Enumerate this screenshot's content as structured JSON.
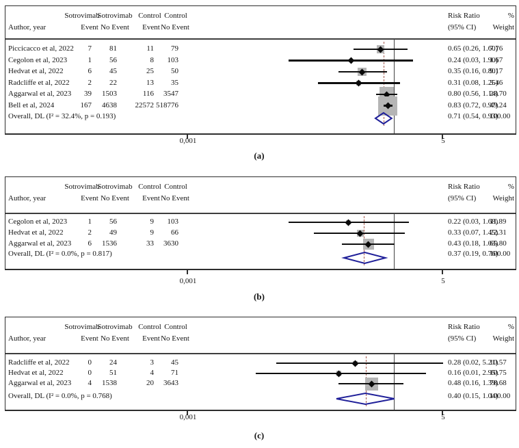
{
  "columns": {
    "author": "Author, year",
    "group1": "Sotrovimab",
    "group2": "Sotrovimab",
    "group3": "Control",
    "group4": "Control",
    "sub1": "Event",
    "sub2": "No Event",
    "sub3": "Event",
    "sub4": "No Event",
    "rr_line1": "Risk Ratio",
    "rr_line2": "(95% CI)",
    "weight_line1": "%",
    "weight_line2": "Weight"
  },
  "colors": {
    "weight_box": "#b5b5b5",
    "overall_diamond": "#1f1f99",
    "overall_dashed_line": "#a4564a",
    "ci_line": "#0e0e0e",
    "null_line": "#404040",
    "border": "#2d2d2d"
  },
  "chart_data": [
    {
      "type": "forest",
      "caption": "(a)",
      "x_axis": {
        "scale": "log10",
        "range": [
          0.001,
          5
        ],
        "tick_labels": [
          "0,001",
          "5"
        ],
        "null_line": 1
      },
      "legend_position": "none",
      "heterogeneity": "Overall, DL (I² = 32.4%, p = 0.193)",
      "studies": [
        {
          "author": "Piccicacco et al, 2022",
          "te": "7",
          "tn": "81",
          "ce": "11",
          "cn": "79",
          "rr": 0.65,
          "lo": 0.26,
          "hi": 1.6,
          "rr_text": "0.65 (0.26, 1.60)",
          "weight": 7.76,
          "weight_text": "7.76"
        },
        {
          "author": "Cegolon et al, 2023",
          "te": "1",
          "tn": "56",
          "ce": "8",
          "cn": "103",
          "rr": 0.24,
          "lo": 0.03,
          "hi": 1.9,
          "rr_text": "0.24 (0.03, 1.90)",
          "weight": 1.67,
          "weight_text": "1.67"
        },
        {
          "author": "Hedvat et al, 2022",
          "te": "6",
          "tn": "45",
          "ce": "25",
          "cn": "50",
          "rr": 0.35,
          "lo": 0.16,
          "hi": 0.8,
          "rr_text": "0.35 (0.16, 0.80)",
          "weight": 9.17,
          "weight_text": "9.17"
        },
        {
          "author": "Radcliffe et al, 2022",
          "te": "2",
          "tn": "22",
          "ce": "13",
          "cn": "35",
          "rr": 0.31,
          "lo": 0.08,
          "hi": 1.25,
          "rr_text": "0.31 (0.08, 1.25)",
          "weight": 3.46,
          "weight_text": "3.46"
        },
        {
          "author": "Aggarwal et al, 2023",
          "te": "39",
          "tn": "1503",
          "ce": "116",
          "cn": "3547",
          "rr": 0.8,
          "lo": 0.56,
          "hi": 1.14,
          "rr_text": "0.80 (0.56, 1.14)",
          "weight": 28.7,
          "weight_text": "28.70"
        },
        {
          "author": "Bell et al, 2024",
          "te": "167",
          "tn": "4638",
          "ce": "22572",
          "cn": "518776",
          "rr": 0.83,
          "lo": 0.72,
          "hi": 0.97,
          "rr_text": "0.83 (0.72, 0.97)",
          "weight": 49.24,
          "weight_text": "49.24"
        }
      ],
      "overall": {
        "rr": 0.71,
        "lo": 0.54,
        "hi": 0.93,
        "rr_text": "0.71 (0.54, 0.93)",
        "weight_text": "100.00"
      }
    },
    {
      "type": "forest",
      "caption": "(b)",
      "x_axis": {
        "scale": "log10",
        "range": [
          0.001,
          5
        ],
        "tick_labels": [
          "0,001",
          "5"
        ],
        "null_line": 1
      },
      "legend_position": "none",
      "heterogeneity": "Overall, DL (I² = 0.0%, p = 0.817)",
      "studies": [
        {
          "author": "Cegolon et al, 2023",
          "te": "1",
          "tn": "56",
          "ce": "9",
          "cn": "103",
          "rr": 0.22,
          "lo": 0.03,
          "hi": 1.68,
          "rr_text": "0.22 (0.03, 1.68)",
          "weight": 11.89,
          "weight_text": "11.89"
        },
        {
          "author": "Hedvat et al, 2022",
          "te": "2",
          "tn": "49",
          "ce": "9",
          "cn": "66",
          "rr": 0.33,
          "lo": 0.07,
          "hi": 1.45,
          "rr_text": "0.33 (0.07, 1.45)",
          "weight": 22.31,
          "weight_text": "22.31"
        },
        {
          "author": "Aggarwal et al, 2023",
          "te": "6",
          "tn": "1536",
          "ce": "33",
          "cn": "3630",
          "rr": 0.43,
          "lo": 0.18,
          "hi": 1.03,
          "rr_text": "0.43 (0.18, 1.03)",
          "weight": 65.8,
          "weight_text": "65.80"
        }
      ],
      "overall": {
        "rr": 0.37,
        "lo": 0.19,
        "hi": 0.76,
        "rr_text": "0.37 (0.19, 0.76)",
        "weight_text": "100.00"
      }
    },
    {
      "type": "forest",
      "caption": "(c)",
      "x_axis": {
        "scale": "log10",
        "range": [
          0.001,
          5
        ],
        "tick_labels": [
          "0,001",
          "5"
        ],
        "null_line": 1
      },
      "legend_position": "none",
      "heterogeneity": "Overall, DL (I² = 0.0%, p = 0.768)",
      "studies": [
        {
          "author": "Radcliffe et al, 2022",
          "te": "0",
          "tn": "24",
          "ce": "3",
          "cn": "45",
          "rr": 0.28,
          "lo": 0.02,
          "hi": 5.21,
          "rr_text": "0.28 (0.02, 5.21)",
          "weight": 10.57,
          "weight_text": "10.57"
        },
        {
          "author": "Hedvat et al, 2022",
          "te": "0",
          "tn": "51",
          "ce": "4",
          "cn": "71",
          "rr": 0.16,
          "lo": 0.01,
          "hi": 2.95,
          "rr_text": "0.16 (0.01, 2.95)",
          "weight": 10.75,
          "weight_text": "10.75"
        },
        {
          "author": "Aggarwal et al, 2023",
          "te": "4",
          "tn": "1538",
          "ce": "20",
          "cn": "3643",
          "rr": 0.48,
          "lo": 0.16,
          "hi": 1.39,
          "rr_text": "0.48 (0.16, 1.39)",
          "weight": 78.68,
          "weight_text": "78.68"
        }
      ],
      "overall": {
        "rr": 0.4,
        "lo": 0.15,
        "hi": 1.04,
        "rr_text": "0.40 (0.15, 1.04)",
        "weight_text": "100.00"
      }
    }
  ]
}
